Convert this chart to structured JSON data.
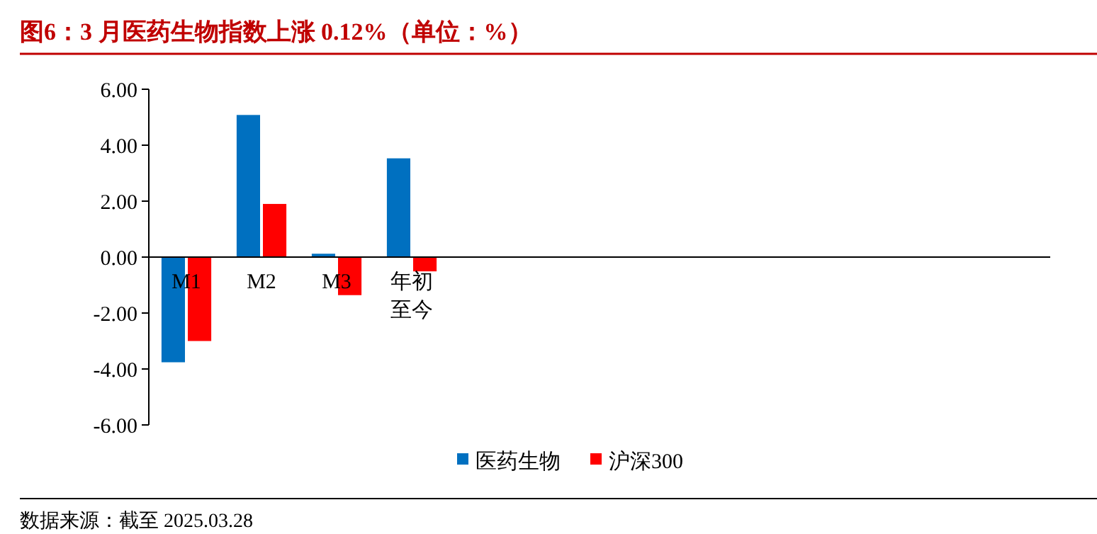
{
  "chart_data": {
    "type": "bar",
    "title": "图6：3 月医药生物指数上涨 0.12%（单位：%）",
    "categories": [
      "M1",
      "M2",
      "M3",
      "年初至今",
      null,
      null,
      null,
      null,
      null,
      null,
      null,
      null
    ],
    "series": [
      {
        "name": "医药生物",
        "color": "#0070c0",
        "values": [
          -3.76,
          5.08,
          0.12,
          3.53,
          null,
          null,
          null,
          null,
          null,
          null,
          null,
          null
        ]
      },
      {
        "name": "沪深300",
        "color": "#ff0000",
        "values": [
          -3.0,
          1.9,
          -1.36,
          -0.51,
          null,
          null,
          null,
          null,
          null,
          null,
          null,
          null
        ]
      }
    ],
    "ylim": [
      -6,
      6
    ],
    "yticks": [
      {
        "value": -6,
        "label": "-6.00"
      },
      {
        "value": -4,
        "label": "-4.00"
      },
      {
        "value": -2,
        "label": "-2.00"
      },
      {
        "value": 0,
        "label": "0.00"
      },
      {
        "value": 2,
        "label": "2.00"
      },
      {
        "value": 4,
        "label": "4.00"
      },
      {
        "value": 6,
        "label": "6.00"
      }
    ],
    "legend": "bottom",
    "grid": false,
    "annotations": [
      "数据来源：截至 2025.03.28"
    ]
  }
}
